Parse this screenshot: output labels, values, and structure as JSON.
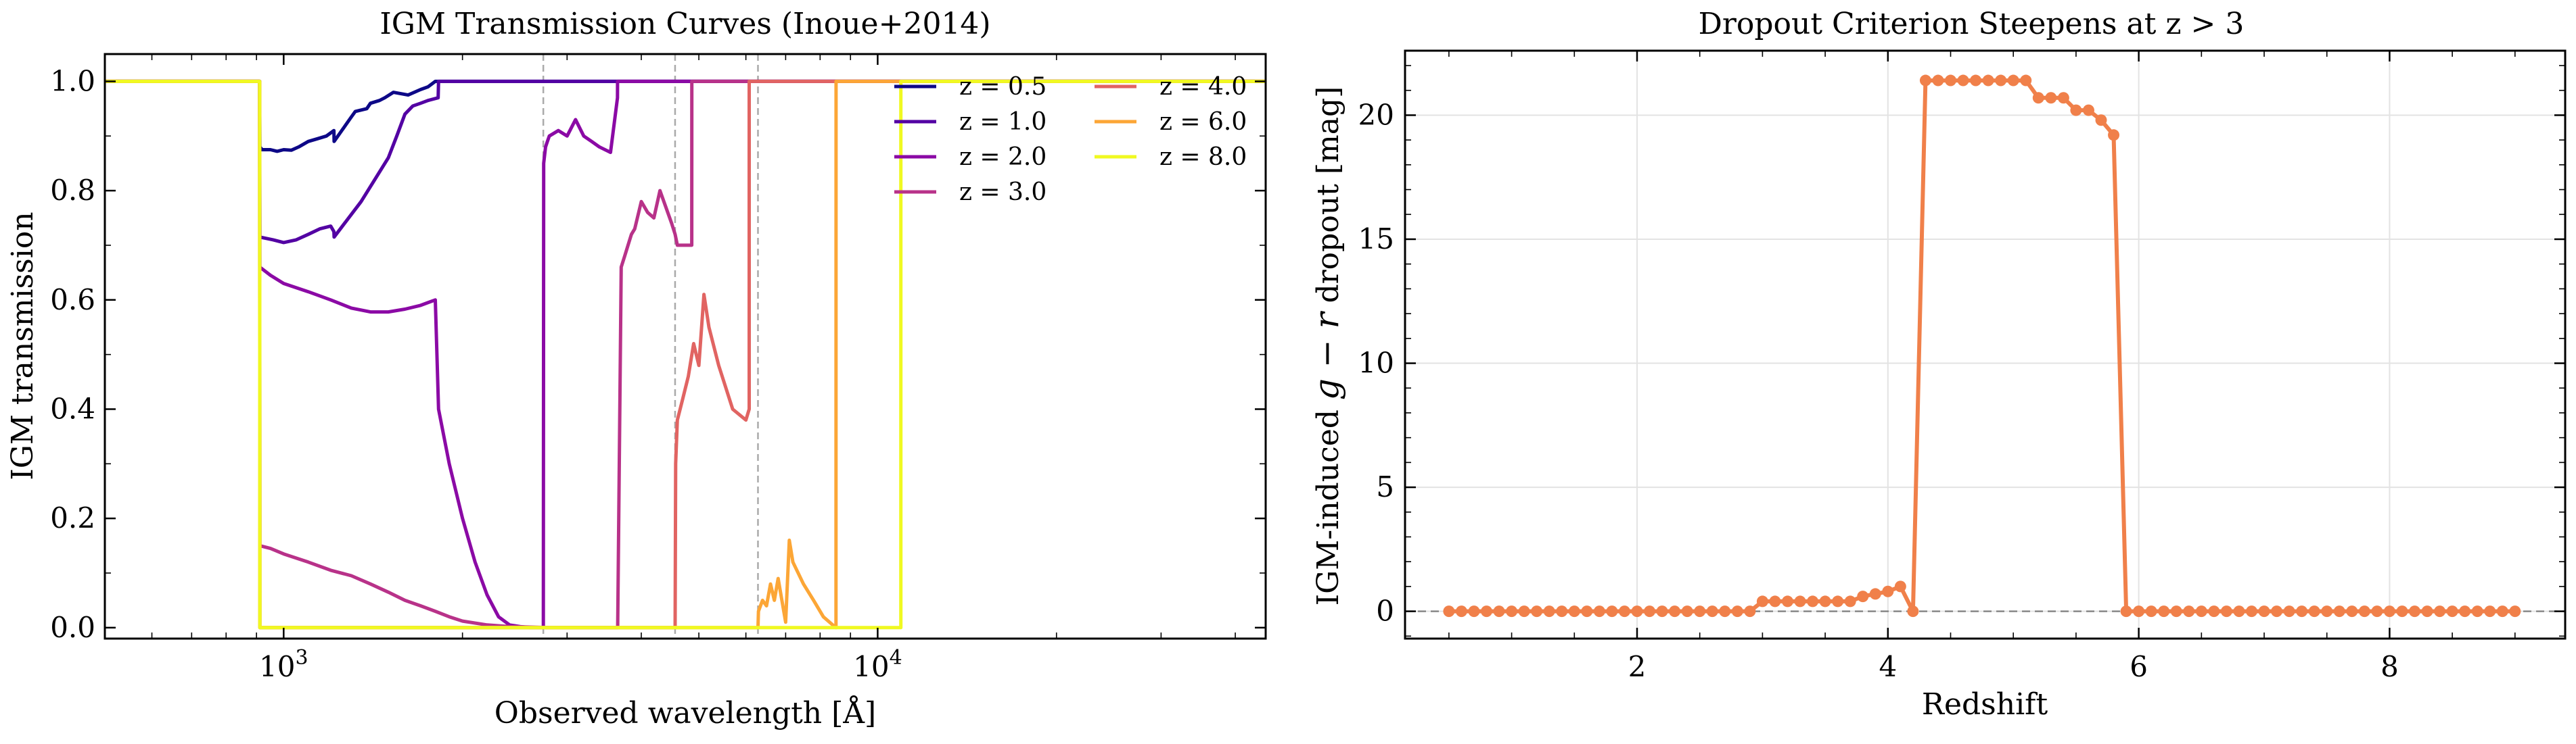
{
  "chart_data": [
    {
      "type": "line",
      "title": "IGM Transmission Curves (Inoue+2014)",
      "xlabel": "Observed wavelength [Å]",
      "ylabel": "IGM transmission",
      "xscale": "log",
      "xlim": [
        500,
        45000
      ],
      "ylim": [
        -0.02,
        1.05
      ],
      "x_major_ticks": [
        1000,
        10000
      ],
      "x_tick_labels": [
        {
          "base": "10",
          "exp": "3"
        },
        {
          "base": "10",
          "exp": "4"
        }
      ],
      "y_ticks": [
        0.0,
        0.2,
        0.4,
        0.6,
        0.8,
        1.0
      ],
      "y_tick_labels": [
        "0.0",
        "0.2",
        "0.4",
        "0.6",
        "0.8",
        "1.0"
      ],
      "grid": false,
      "legend_position": "upper-right",
      "vlines": [
        2736,
        4560,
        6288
      ],
      "series": [
        {
          "name": "z = 0.5",
          "color": "#0d0887",
          "x": [
            500,
            911,
            912,
            920,
            950,
            975,
            1000,
            1030,
            1060,
            1100,
            1140,
            1180,
            1215,
            1216,
            1300,
            1320,
            1380,
            1400,
            1450,
            1480,
            1530,
            1620,
            1700,
            1750,
            1800,
            2000,
            45000
          ],
          "y": [
            1.0,
            1.0,
            0.88,
            0.875,
            0.875,
            0.872,
            0.875,
            0.874,
            0.88,
            0.89,
            0.895,
            0.9,
            0.91,
            0.89,
            0.935,
            0.945,
            0.95,
            0.96,
            0.965,
            0.97,
            0.98,
            0.975,
            0.985,
            0.99,
            1.0,
            1.0,
            1.0
          ]
        },
        {
          "name": "z = 1.0",
          "color": "#5302a3",
          "x": [
            500,
            911,
            912,
            960,
            1000,
            1050,
            1100,
            1150,
            1200,
            1215,
            1216,
            1350,
            1500,
            1550,
            1600,
            1650,
            1700,
            1750,
            1820,
            1823,
            2400,
            45000
          ],
          "y": [
            1.0,
            1.0,
            0.715,
            0.71,
            0.705,
            0.71,
            0.72,
            0.73,
            0.735,
            0.725,
            0.715,
            0.78,
            0.86,
            0.9,
            0.94,
            0.955,
            0.96,
            0.965,
            0.97,
            1.0,
            1.0,
            1.0
          ],
          "extra_x": [
            2436
          ],
          "extra_y": [
            1.0
          ]
        },
        {
          "name": "z = 2.0",
          "color": "#8b0aa5",
          "x": [
            500,
            911,
            912,
            950,
            1000,
            1100,
            1200,
            1300,
            1400,
            1500,
            1600,
            1700,
            1800,
            1823,
            1900,
            2000,
            2100,
            2200,
            2300,
            2400,
            2500,
            2600,
            2736,
            2740,
            2760,
            2780,
            2800,
            2900,
            3000,
            3100,
            3200,
            3300,
            3400,
            3550,
            3647,
            3648,
            45000
          ],
          "y": [
            1.0,
            1.0,
            0.66,
            0.645,
            0.63,
            0.615,
            0.6,
            0.585,
            0.578,
            0.578,
            0.583,
            0.59,
            0.6,
            0.4,
            0.3,
            0.2,
            0.12,
            0.06,
            0.02,
            0.005,
            0.002,
            0.0,
            0.0,
            0.85,
            0.88,
            0.89,
            0.9,
            0.91,
            0.9,
            0.93,
            0.9,
            0.89,
            0.88,
            0.87,
            0.97,
            1.0,
            1.0
          ]
        },
        {
          "name": "z = 3.0",
          "color": "#b83289",
          "x": [
            500,
            911,
            912,
            950,
            1000,
            1100,
            1200,
            1300,
            1400,
            1500,
            1600,
            1700,
            1800,
            1900,
            2000,
            2200,
            2400,
            2600,
            2800,
            3000,
            3300,
            3600,
            3646,
            3650,
            3700,
            3750,
            3800,
            3850,
            3900,
            4000,
            4100,
            4200,
            4300,
            4500,
            4560,
            4600,
            4864,
            4865,
            45000
          ],
          "y": [
            1.0,
            1.0,
            0.15,
            0.145,
            0.135,
            0.12,
            0.105,
            0.095,
            0.08,
            0.065,
            0.05,
            0.04,
            0.03,
            0.02,
            0.012,
            0.005,
            0.002,
            0.001,
            0.0,
            0.0,
            0.0,
            0.0,
            0.0,
            0.0,
            0.66,
            0.68,
            0.7,
            0.72,
            0.73,
            0.78,
            0.76,
            0.75,
            0.8,
            0.74,
            0.72,
            0.7,
            0.7,
            1.0,
            1.0
          ]
        },
        {
          "name": "z = 4.0",
          "color": "#e16462",
          "x": [
            500,
            911,
            912,
            4500,
            4560,
            4570,
            4600,
            4650,
            4700,
            4800,
            4900,
            5000,
            5100,
            5200,
            5400,
            5700,
            6000,
            6077,
            6078,
            45000
          ],
          "y": [
            1.0,
            1.0,
            0.0,
            0.0,
            0.0,
            0.3,
            0.38,
            0.4,
            0.42,
            0.46,
            0.52,
            0.48,
            0.61,
            0.55,
            0.48,
            0.4,
            0.38,
            0.4,
            1.0,
            1.0
          ]
        },
        {
          "name": "z = 6.0",
          "color": "#fca636",
          "x": [
            500,
            911,
            912,
            6200,
            6288,
            6300,
            6400,
            6500,
            6600,
            6700,
            6800,
            7000,
            7100,
            7200,
            7500,
            7800,
            8100,
            8400,
            8509,
            8510,
            45000
          ],
          "y": [
            1.0,
            1.0,
            0.0,
            0.0,
            0.0,
            0.03,
            0.05,
            0.04,
            0.08,
            0.05,
            0.09,
            0.01,
            0.16,
            0.12,
            0.08,
            0.05,
            0.02,
            0.005,
            0.0,
            1.0,
            1.0
          ]
        },
        {
          "name": "z = 8.0",
          "color": "#f0f921",
          "x": [
            500,
            911,
            912,
            10500,
            10940,
            10941,
            45000
          ],
          "y": [
            1.0,
            1.0,
            0.0,
            0.0,
            0.0,
            1.0,
            1.0
          ]
        }
      ]
    },
    {
      "type": "line",
      "title": "Dropout Criterion Steepens at z > 3",
      "xlabel": "Redshift",
      "ylabel_prefix": "IGM-induced ",
      "ylabel_math": "g − r",
      "ylabel_suffix": " dropout [mag]",
      "xlim": [
        0.15,
        9.4
      ],
      "ylim": [
        -1.1,
        22.6
      ],
      "x_ticks": [
        2,
        4,
        6,
        8
      ],
      "x_tick_labels": [
        "2",
        "4",
        "6",
        "8"
      ],
      "y_ticks": [
        0,
        5,
        10,
        15,
        20
      ],
      "y_tick_labels": [
        "0",
        "5",
        "10",
        "15",
        "20"
      ],
      "grid": true,
      "hline": 0,
      "series": [
        {
          "name": "",
          "color": "#f0804a",
          "x": [
            0.5,
            0.6,
            0.7,
            0.8,
            0.9,
            1.0,
            1.1,
            1.2,
            1.3,
            1.4,
            1.5,
            1.6,
            1.7,
            1.8,
            1.9,
            2.0,
            2.1,
            2.2,
            2.3,
            2.4,
            2.5,
            2.6,
            2.7,
            2.8,
            2.9,
            3.0,
            3.1,
            3.2,
            3.3,
            3.4,
            3.5,
            3.6,
            3.7,
            3.8,
            3.9,
            4.0,
            4.1,
            4.2,
            4.3,
            4.4,
            4.5,
            4.6,
            4.7,
            4.8,
            4.9,
            5.0,
            5.1,
            5.2,
            5.3,
            5.4,
            5.5,
            5.6,
            5.7,
            5.8,
            5.9,
            6.0,
            6.1,
            6.2,
            6.3,
            6.4,
            6.5,
            6.6,
            6.7,
            6.8,
            6.9,
            7.0,
            7.1,
            7.2,
            7.3,
            7.4,
            7.5,
            7.6,
            7.7,
            7.8,
            7.9,
            8.0,
            8.1,
            8.2,
            8.3,
            8.4,
            8.5,
            8.6,
            8.7,
            8.8,
            8.9,
            9.0
          ],
          "y": [
            0,
            0,
            0,
            0,
            0,
            0,
            0,
            0,
            0,
            0,
            0,
            0,
            0,
            0,
            0,
            0,
            0,
            0,
            0,
            0,
            0,
            0,
            0,
            0,
            0,
            0.4,
            0.4,
            0.4,
            0.4,
            0.4,
            0.4,
            0.4,
            0.4,
            0.6,
            0.7,
            0.8,
            1.0,
            0.0,
            21.4,
            21.4,
            21.4,
            21.4,
            21.4,
            21.4,
            21.4,
            21.4,
            21.4,
            20.7,
            20.7,
            20.7,
            20.2,
            20.2,
            19.8,
            19.2,
            0,
            0,
            0,
            0,
            0,
            0,
            0,
            0,
            0,
            0,
            0,
            0,
            0,
            0,
            0,
            0,
            0,
            0,
            0,
            0,
            0,
            0,
            0,
            0,
            0,
            0,
            0,
            0,
            0,
            0,
            0,
            0
          ]
        }
      ]
    }
  ]
}
